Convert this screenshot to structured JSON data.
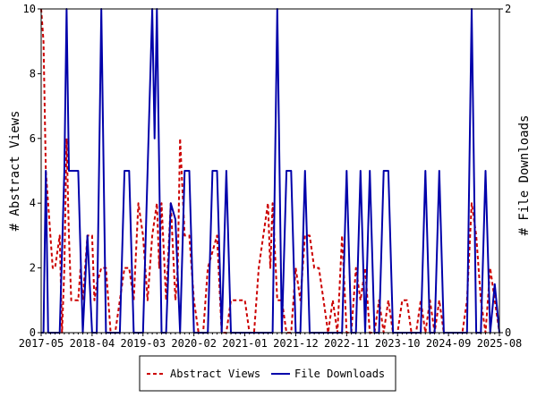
{
  "chart_data": {
    "type": "line",
    "xlabel": "",
    "ylabel_left": "# Abstract Views",
    "ylabel_right": "# File Downloads",
    "xtick_labels": [
      "2017-05",
      "2018-04",
      "2019-03",
      "2020-02",
      "2021-01",
      "2021-12",
      "2022-11",
      "2023-10",
      "2024-09",
      "2025-08"
    ],
    "xlim_months": [
      0,
      99
    ],
    "ylim_left": [
      0,
      10
    ],
    "ylim_right": [
      0,
      2
    ],
    "yticks_left": [
      "0",
      "2",
      "4",
      "6",
      "8",
      "10"
    ],
    "yticks_right": [
      "0",
      "2"
    ],
    "legend_position": "bottom-center",
    "grid": false,
    "series": [
      {
        "name": "Abstract Views",
        "axis": "left",
        "style": "dashed",
        "color": "#cc0000",
        "points": [
          [
            0,
            10
          ],
          [
            0.5,
            9
          ],
          [
            1,
            5
          ],
          [
            1.5,
            4
          ],
          [
            2,
            3
          ],
          [
            2.5,
            2
          ],
          [
            3,
            2
          ],
          [
            4,
            3
          ],
          [
            4.5,
            0
          ],
          [
            5,
            2
          ],
          [
            5.5,
            6
          ],
          [
            6,
            3
          ],
          [
            6.5,
            1
          ],
          [
            7,
            1
          ],
          [
            8,
            1
          ],
          [
            8.5,
            2
          ],
          [
            9,
            1
          ],
          [
            10,
            3
          ],
          [
            11,
            3
          ],
          [
            11.5,
            1
          ],
          [
            12,
            1.5
          ],
          [
            13,
            2
          ],
          [
            14,
            2
          ],
          [
            15,
            0
          ],
          [
            16,
            0
          ],
          [
            17,
            1
          ],
          [
            18,
            2
          ],
          [
            19,
            2
          ],
          [
            20,
            1
          ],
          [
            21,
            4
          ],
          [
            22,
            3
          ],
          [
            23,
            1
          ],
          [
            24,
            3
          ],
          [
            25,
            4
          ],
          [
            25.5,
            2
          ],
          [
            26,
            4
          ],
          [
            27,
            1
          ],
          [
            28,
            4
          ],
          [
            29,
            1
          ],
          [
            29.5,
            2
          ],
          [
            30,
            6
          ],
          [
            31,
            3
          ],
          [
            32,
            3
          ],
          [
            33,
            1
          ],
          [
            34,
            0
          ],
          [
            35,
            0
          ],
          [
            36,
            2
          ],
          [
            37,
            2.5
          ],
          [
            38,
            3
          ],
          [
            39,
            0
          ],
          [
            40,
            0
          ],
          [
            41,
            1
          ],
          [
            42,
            1
          ],
          [
            43,
            1
          ],
          [
            44,
            1
          ],
          [
            45,
            0
          ],
          [
            46,
            0
          ],
          [
            47,
            2
          ],
          [
            48,
            3
          ],
          [
            49,
            4
          ],
          [
            49.5,
            2
          ],
          [
            50,
            4
          ],
          [
            51,
            1
          ],
          [
            52,
            1
          ],
          [
            53,
            0
          ],
          [
            54,
            0
          ],
          [
            55,
            2
          ],
          [
            56,
            1
          ],
          [
            57,
            3
          ],
          [
            58,
            3
          ],
          [
            59,
            2
          ],
          [
            60,
            2
          ],
          [
            61,
            1
          ],
          [
            62,
            0
          ],
          [
            63,
            1
          ],
          [
            64,
            0
          ],
          [
            65,
            3
          ],
          [
            66,
            0
          ],
          [
            67,
            0
          ],
          [
            68,
            2
          ],
          [
            69,
            1
          ],
          [
            70,
            2
          ],
          [
            71,
            0
          ],
          [
            72,
            0
          ],
          [
            73,
            1
          ],
          [
            74,
            0
          ],
          [
            75,
            1
          ],
          [
            76,
            0
          ],
          [
            77,
            0
          ],
          [
            78,
            1
          ],
          [
            79,
            1
          ],
          [
            80,
            0
          ],
          [
            81,
            0
          ],
          [
            82,
            1
          ],
          [
            83,
            0
          ],
          [
            84,
            1
          ],
          [
            85,
            0
          ],
          [
            86,
            1
          ],
          [
            87,
            0
          ],
          [
            88,
            0
          ],
          [
            89,
            0
          ],
          [
            90,
            0
          ],
          [
            91,
            0
          ],
          [
            92,
            1
          ],
          [
            93,
            4
          ],
          [
            94,
            3
          ],
          [
            95,
            1
          ],
          [
            96,
            0
          ],
          [
            97,
            2
          ],
          [
            98,
            1
          ],
          [
            99,
            0
          ]
        ]
      },
      {
        "name": "File Downloads",
        "axis": "right",
        "style": "solid",
        "color": "#0000aa",
        "points": [
          [
            0,
            0
          ],
          [
            0.5,
            0
          ],
          [
            1,
            1
          ],
          [
            1.5,
            0
          ],
          [
            2,
            0
          ],
          [
            3,
            0
          ],
          [
            4,
            0
          ],
          [
            5,
            1
          ],
          [
            5.5,
            2
          ],
          [
            6,
            1
          ],
          [
            7,
            1
          ],
          [
            8,
            1
          ],
          [
            9,
            0
          ],
          [
            10,
            0.6
          ],
          [
            11,
            0
          ],
          [
            12,
            0
          ],
          [
            13,
            2
          ],
          [
            14,
            0
          ],
          [
            15,
            0
          ],
          [
            16,
            0
          ],
          [
            17,
            0
          ],
          [
            18,
            1
          ],
          [
            19,
            1
          ],
          [
            20,
            0
          ],
          [
            21,
            0
          ],
          [
            22,
            0
          ],
          [
            23,
            1
          ],
          [
            24,
            2
          ],
          [
            24.5,
            1.2
          ],
          [
            25,
            2
          ],
          [
            26,
            0
          ],
          [
            27,
            0
          ],
          [
            28,
            0.8
          ],
          [
            29,
            0.7
          ],
          [
            30,
            0
          ],
          [
            31,
            1
          ],
          [
            32,
            1
          ],
          [
            33,
            0
          ],
          [
            34,
            0
          ],
          [
            35,
            0
          ],
          [
            36,
            0
          ],
          [
            37,
            1
          ],
          [
            38,
            1
          ],
          [
            39,
            0
          ],
          [
            40,
            1
          ],
          [
            41,
            0
          ],
          [
            42,
            0
          ],
          [
            43,
            0
          ],
          [
            44,
            0
          ],
          [
            45,
            0
          ],
          [
            46,
            0
          ],
          [
            47,
            0
          ],
          [
            48,
            0
          ],
          [
            49,
            0
          ],
          [
            50,
            0
          ],
          [
            51,
            2
          ],
          [
            52,
            0
          ],
          [
            53,
            1
          ],
          [
            54,
            1
          ],
          [
            55,
            0
          ],
          [
            56,
            0
          ],
          [
            57,
            1
          ],
          [
            58,
            0
          ],
          [
            59,
            0
          ],
          [
            60,
            0
          ],
          [
            61,
            0
          ],
          [
            62,
            0
          ],
          [
            63,
            0
          ],
          [
            64,
            0
          ],
          [
            65,
            0
          ],
          [
            66,
            1
          ],
          [
            67,
            0
          ],
          [
            68,
            0
          ],
          [
            69,
            1
          ],
          [
            70,
            0
          ],
          [
            71,
            1
          ],
          [
            72,
            0
          ],
          [
            73,
            0
          ],
          [
            74,
            1
          ],
          [
            75,
            1
          ],
          [
            76,
            0
          ],
          [
            77,
            0
          ],
          [
            78,
            0
          ],
          [
            79,
            0
          ],
          [
            80,
            0
          ],
          [
            81,
            0
          ],
          [
            82,
            0
          ],
          [
            83,
            1
          ],
          [
            84,
            0
          ],
          [
            85,
            0
          ],
          [
            86,
            1
          ],
          [
            87,
            0
          ],
          [
            88,
            0
          ],
          [
            89,
            0
          ],
          [
            90,
            0
          ],
          [
            91,
            0
          ],
          [
            92,
            0
          ],
          [
            93,
            2
          ],
          [
            94,
            0
          ],
          [
            95,
            0
          ],
          [
            96,
            1
          ],
          [
            97,
            0
          ],
          [
            98,
            0.3
          ],
          [
            99,
            0
          ]
        ]
      }
    ]
  }
}
